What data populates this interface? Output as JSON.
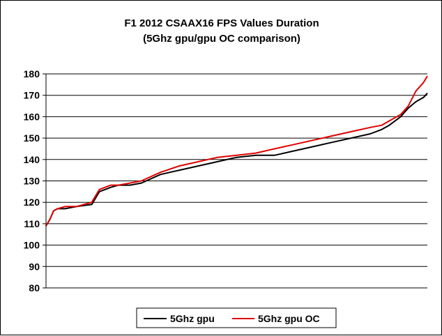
{
  "chart_data": {
    "type": "line",
    "title": "F1 2012 CSAAX16 FPS Values Duration",
    "subtitle": "(5Ghz gpu/gpu OC comparison)",
    "xlabel": "",
    "ylabel": "",
    "ylim": [
      80,
      180
    ],
    "yticks": [
      "80",
      "90",
      "100",
      "110",
      "120",
      "130",
      "140",
      "150",
      "160",
      "170",
      "180"
    ],
    "grid": "horizontal",
    "legend_position": "bottom",
    "x": [
      0,
      1,
      2,
      3,
      5,
      8,
      12,
      14,
      17,
      19,
      22,
      25,
      30,
      35,
      40,
      45,
      50,
      55,
      60,
      65,
      70,
      75,
      80,
      85,
      88,
      90,
      93,
      95,
      97,
      98,
      99,
      100
    ],
    "series": [
      {
        "name": "5Ghz gpu",
        "color": "#000000",
        "values": [
          109,
          112,
          116,
          117,
          117,
          118,
          119,
          125,
          127,
          128,
          128,
          129,
          133,
          135,
          137,
          139,
          141,
          142,
          142,
          144,
          146,
          148,
          150,
          152,
          154,
          156,
          160,
          164,
          167,
          168,
          169,
          171
        ]
      },
      {
        "name": "5Ghz gpu OC",
        "color": "#e00000",
        "values": [
          109,
          112,
          116,
          117,
          118,
          118,
          120,
          126,
          128,
          128,
          129,
          130,
          134,
          137,
          139,
          141,
          142,
          143,
          145,
          147,
          149,
          151,
          153,
          155,
          156,
          158,
          161,
          165,
          172,
          174,
          176,
          179
        ]
      }
    ]
  }
}
